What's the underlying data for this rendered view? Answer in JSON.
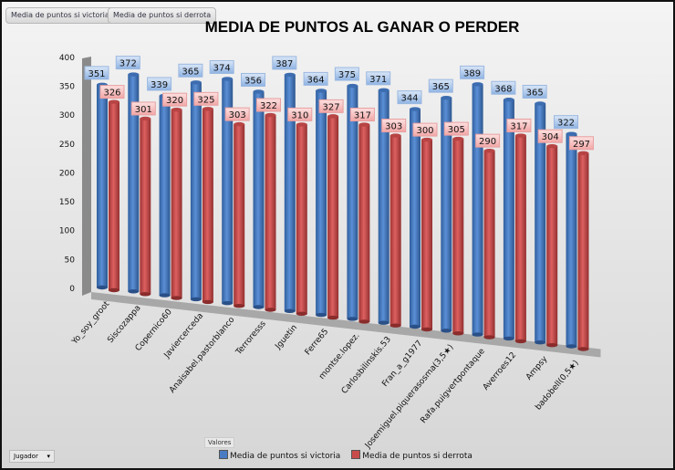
{
  "filter_buttons": [
    "Media de puntos si victoria",
    "Media de puntos si derrota"
  ],
  "axis_field_button": "Jugador",
  "values_label": "Valores",
  "chart_data": {
    "type": "bar",
    "title": "MEDIA DE PUNTOS AL GANAR O PERDER",
    "categories": [
      "Yo_soy_groot",
      "Siscozappa",
      "Copernico60",
      "Javiercerceda",
      "Anaisabel.pastorblanco",
      "Terroresss",
      "Jguetin",
      "Ferre65",
      "montse.lopez.",
      "Carlosbilinskis.53",
      "Fran_a_g1977",
      "Josemiguel.piquerasosma(3,5★)",
      "Rafa.puigvertpontaque",
      "Averroes12",
      "Ampsy",
      "badobell(0,5★)"
    ],
    "series": [
      {
        "name": "Media de puntos si victoria",
        "color": "#4a7cc4",
        "values": [
          351,
          372,
          339,
          365,
          374,
          356,
          387,
          364,
          375,
          371,
          344,
          365,
          389,
          368,
          365,
          322
        ]
      },
      {
        "name": "Media de puntos si derrota",
        "color": "#c84b4b",
        "values": [
          326,
          301,
          320,
          325,
          303,
          322,
          310,
          327,
          317,
          303,
          300,
          305,
          290,
          317,
          304,
          297
        ]
      }
    ],
    "yticks": [
      "0",
      "50",
      "100",
      "150",
      "200",
      "250",
      "300",
      "350",
      "400"
    ],
    "ylim": [
      0,
      400
    ],
    "legend": "bottom"
  }
}
